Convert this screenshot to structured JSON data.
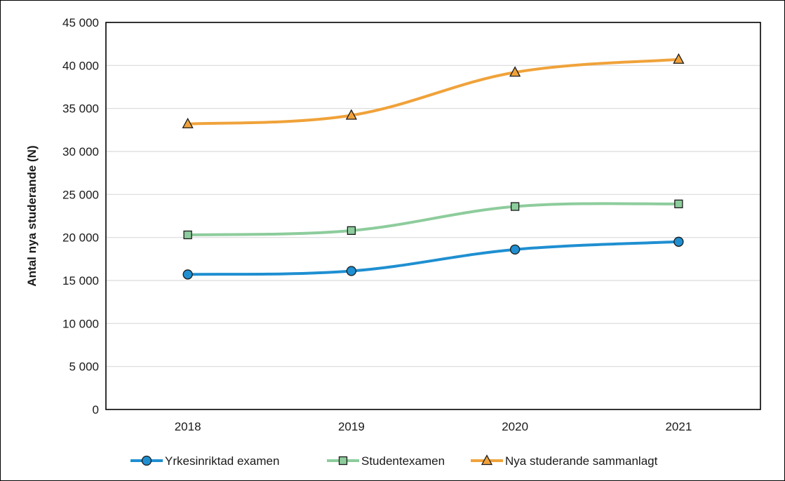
{
  "chart_data": {
    "type": "line",
    "title": "",
    "xlabel": "",
    "ylabel": "Antal nya studerande (N)",
    "categories": [
      "2018",
      "2019",
      "2020",
      "2021"
    ],
    "ylim": [
      0,
      45000
    ],
    "yticks": [
      0,
      5000,
      10000,
      15000,
      20000,
      25000,
      30000,
      35000,
      40000,
      45000
    ],
    "ytick_labels": [
      "0",
      "5 000",
      "10 000",
      "15 000",
      "20 000",
      "25 000",
      "30 000",
      "35 000",
      "40 000",
      "45 000"
    ],
    "grid": true,
    "legend_position": "bottom",
    "series": [
      {
        "name": "Yrkesinriktad examen",
        "values": [
          15700,
          16100,
          18600,
          19500
        ],
        "color": "#1f8fd1",
        "marker": "circle"
      },
      {
        "name": "Studentexamen",
        "values": [
          20300,
          20800,
          23600,
          23900
        ],
        "color": "#8dcc9c",
        "marker": "square"
      },
      {
        "name": "Nya studerande sammanlagt",
        "values": [
          33200,
          34200,
          39200,
          40700
        ],
        "color": "#f0a23a",
        "marker": "triangle"
      }
    ]
  }
}
